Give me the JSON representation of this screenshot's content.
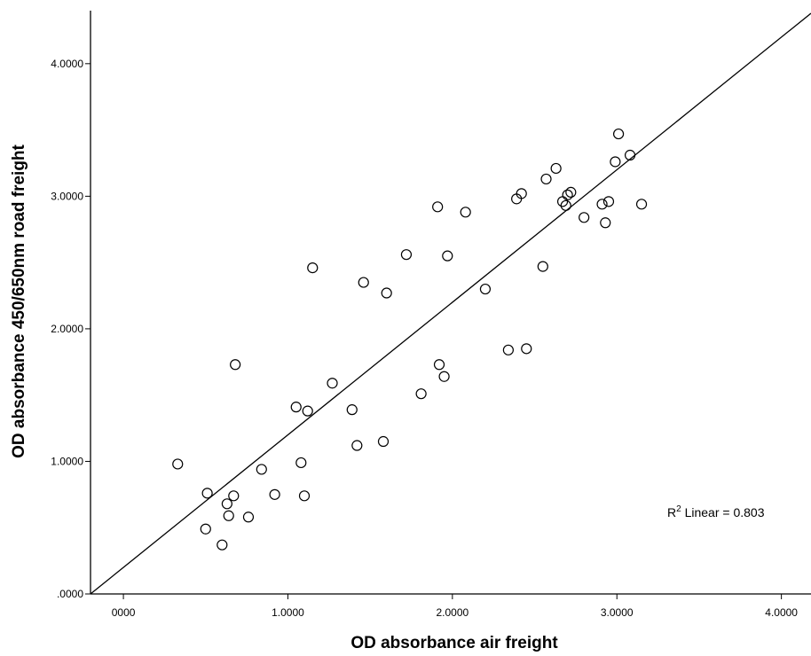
{
  "chart_data": {
    "type": "scatter",
    "xlabel": "OD absorbance air freight",
    "ylabel": "OD absorbance 450/650nm road freight",
    "xlim": [
      -0.2,
      4.18
    ],
    "ylim": [
      0.0,
      4.4
    ],
    "x_ticks": [
      {
        "value": 0,
        "label": "0000"
      },
      {
        "value": 1,
        "label": "1.0000"
      },
      {
        "value": 2,
        "label": "2.0000"
      },
      {
        "value": 3,
        "label": "3.0000"
      },
      {
        "value": 4,
        "label": "4.0000"
      }
    ],
    "y_ticks": [
      {
        "value": 0,
        "label": ".0000"
      },
      {
        "value": 1,
        "label": "1.0000"
      },
      {
        "value": 2,
        "label": "2.0000"
      },
      {
        "value": 3,
        "label": "3.0000"
      },
      {
        "value": 4,
        "label": "4.0000"
      }
    ],
    "fit_line": {
      "slope": 1.0,
      "intercept": 0.2
    },
    "annotation": {
      "r2_prefix": "R",
      "r2_sup": "2",
      "r2_text": " Linear = 0.803"
    },
    "points": [
      [
        0.33,
        0.98
      ],
      [
        0.5,
        0.49
      ],
      [
        0.51,
        0.76
      ],
      [
        0.6,
        0.37
      ],
      [
        0.63,
        0.68
      ],
      [
        0.64,
        0.59
      ],
      [
        0.67,
        0.74
      ],
      [
        0.68,
        1.73
      ],
      [
        0.76,
        0.58
      ],
      [
        0.84,
        0.94
      ],
      [
        0.92,
        0.75
      ],
      [
        1.05,
        1.41
      ],
      [
        1.08,
        0.99
      ],
      [
        1.1,
        0.74
      ],
      [
        1.12,
        1.38
      ],
      [
        1.15,
        2.46
      ],
      [
        1.27,
        1.59
      ],
      [
        1.39,
        1.39
      ],
      [
        1.42,
        1.12
      ],
      [
        1.46,
        2.35
      ],
      [
        1.58,
        1.15
      ],
      [
        1.6,
        2.27
      ],
      [
        1.72,
        2.56
      ],
      [
        1.81,
        1.51
      ],
      [
        1.91,
        2.92
      ],
      [
        1.92,
        1.73
      ],
      [
        1.95,
        1.64
      ],
      [
        1.97,
        2.55
      ],
      [
        2.08,
        2.88
      ],
      [
        2.2,
        2.3
      ],
      [
        2.34,
        1.84
      ],
      [
        2.39,
        2.98
      ],
      [
        2.42,
        3.02
      ],
      [
        2.45,
        1.85
      ],
      [
        2.55,
        2.47
      ],
      [
        2.57,
        3.13
      ],
      [
        2.63,
        3.21
      ],
      [
        2.67,
        2.96
      ],
      [
        2.69,
        2.93
      ],
      [
        2.7,
        3.01
      ],
      [
        2.72,
        3.03
      ],
      [
        2.8,
        2.84
      ],
      [
        2.91,
        2.94
      ],
      [
        2.93,
        2.8
      ],
      [
        2.95,
        2.96
      ],
      [
        2.99,
        3.26
      ],
      [
        3.01,
        3.47
      ],
      [
        3.08,
        3.31
      ],
      [
        3.15,
        2.94
      ]
    ]
  }
}
